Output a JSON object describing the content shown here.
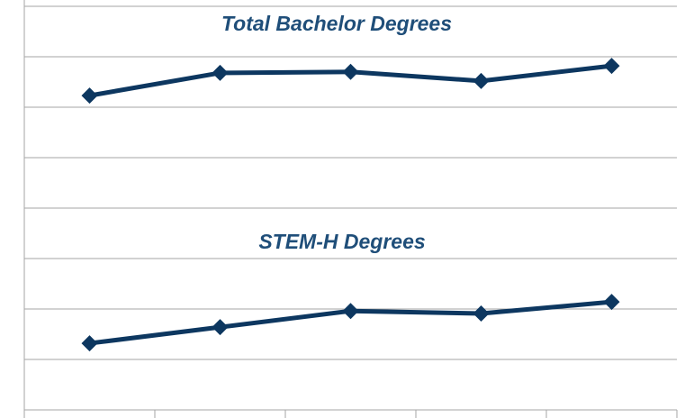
{
  "chart_data": {
    "type": "line",
    "annotations": [
      "Total Bachelor Degrees",
      "STEM-H Degrees"
    ],
    "categories": [
      null,
      null,
      null,
      null,
      null
    ],
    "series": [
      {
        "color": "#0d3760",
        "values": [
          6.23,
          6.68,
          6.7,
          6.52,
          6.82
        ]
      },
      {
        "color": "#0d3760",
        "values": [
          1.32,
          1.64,
          1.96,
          1.91,
          2.14
        ]
      }
    ],
    "ylim": [
      0,
      8
    ],
    "yticks": [
      0,
      1,
      2,
      3,
      4,
      5,
      6,
      7,
      8
    ],
    "grid": true
  }
}
